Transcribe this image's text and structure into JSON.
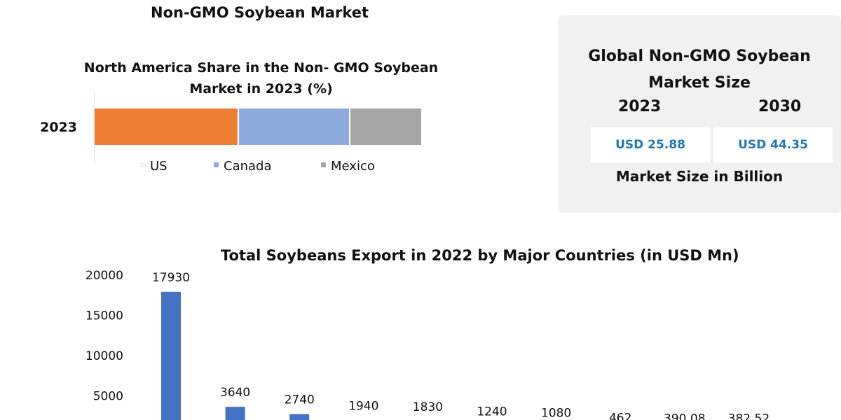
{
  "page": {
    "title": "Non-GMO Soybean Market"
  },
  "info_card": {
    "title_line1": "Global Non-GMO Soybean",
    "title_line2": "Market Size",
    "years": [
      {
        "year": "2023",
        "value": "USD 25.88"
      },
      {
        "year": "2030",
        "value": "USD 44.35"
      }
    ],
    "footer": "Market Size in Billion"
  },
  "colors": {
    "us": "#ed7d31",
    "canada": "#8faadc",
    "mexico": "#a5a5a5",
    "bar": "#4472c4",
    "value_text": "#1f77b4",
    "card_bg": "#f1f1f1"
  },
  "chart_data": [
    {
      "type": "bar",
      "orientation": "horizontal",
      "stacked": true,
      "title_line1": "North America Share in the Non- GMO Soybean",
      "title_line2": "Market in 2023 (%)",
      "categories": [
        "2023"
      ],
      "series": [
        {
          "name": "US",
          "values": [
            44
          ]
        },
        {
          "name": "Canada",
          "values": [
            34
          ]
        },
        {
          "name": "Mexico",
          "values": [
            22
          ]
        }
      ],
      "legend_position": "bottom",
      "grid": false
    },
    {
      "type": "bar",
      "title": "Total Soybeans Export in 2022 by Major Countries (in USD Mn)",
      "categories": [
        "",
        "",
        "",
        "",
        "",
        "",
        "",
        "",
        "",
        ""
      ],
      "values": [
        17930,
        3640,
        2740,
        1940,
        1830,
        1240,
        1080,
        462,
        390.08,
        382.52
      ],
      "labels": [
        "17930",
        "3640",
        "2740",
        "1940",
        "1830",
        "1240",
        "1080",
        "462",
        "390.08",
        "382.52"
      ],
      "yticks": [
        "20000",
        "15000",
        "10000",
        "5000"
      ],
      "ylim": [
        0,
        20000
      ],
      "grid": false
    }
  ]
}
